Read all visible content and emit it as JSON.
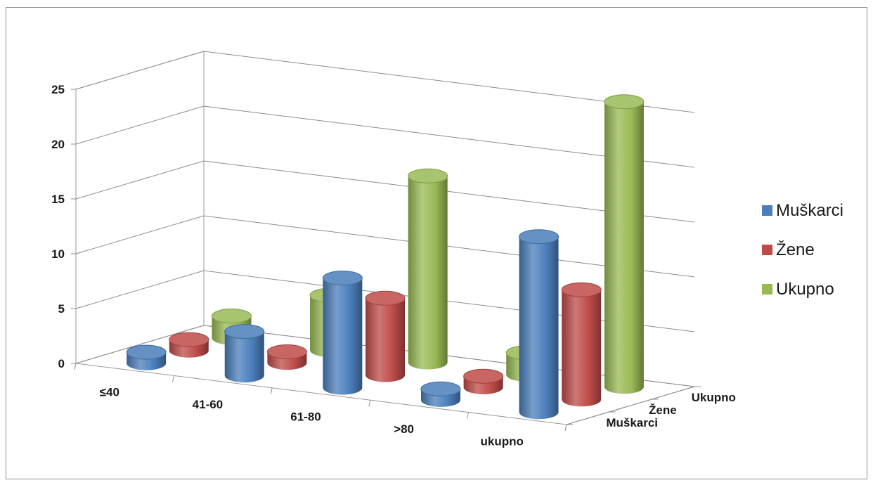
{
  "chart_data": {
    "type": "bar",
    "subtype": "3d-cylinder",
    "title": "",
    "xlabel": "",
    "ylabel": "",
    "ylim": [
      0,
      25
    ],
    "yticks": [
      0,
      5,
      10,
      15,
      20,
      25
    ],
    "categories": [
      "≤40",
      "41-60",
      "61-80",
      ">80",
      "ukupno"
    ],
    "depth_labels": [
      "Muškarci",
      "Žene",
      "Ukupno"
    ],
    "grid": true,
    "legend_position": "right",
    "series": [
      {
        "name": "Muškarci",
        "color": "#4a7ebb",
        "values": [
          1,
          4,
          10,
          1,
          16
        ]
      },
      {
        "name": "Žene",
        "color": "#be4b48",
        "values": [
          1,
          1,
          7,
          1,
          10
        ]
      },
      {
        "name": "Ukupno",
        "color": "#98b954",
        "values": [
          2,
          5,
          17,
          2,
          26
        ]
      }
    ]
  }
}
